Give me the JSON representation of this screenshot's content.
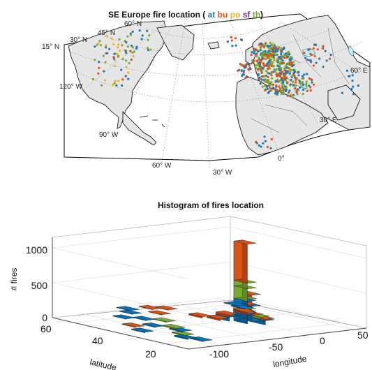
{
  "chart_data": [
    {
      "type": "scatter",
      "title_prefix": "SE Europe fire location ( ",
      "title_suffix": ")",
      "legend_series": [
        {
          "name": "at",
          "color": "#1f77b4"
        },
        {
          "name": "bu",
          "color": "#d95319"
        },
        {
          "name": "po",
          "color": "#edb120"
        },
        {
          "name": "sf",
          "color": "#7e2f8e"
        },
        {
          "name": "th",
          "color": "#77ac30"
        }
      ],
      "grid_labels": {
        "lat_15": "15° N",
        "lat_30": "30° N",
        "lat_45": "45° N",
        "lat_60": "60° N",
        "lon_120w": "120° W",
        "lon_90w": "90° W",
        "lon_60w": "60° W",
        "lon_30w": "30° W",
        "lon_0": "0°",
        "lon_30e": "30° E",
        "lon_60e": "60° E"
      },
      "land_color": "#e6e6e6",
      "grid": true
    },
    {
      "type": "bar3d",
      "title": "Histogram of fires location",
      "xlabel": "longitude",
      "ylabel": "latitude",
      "zlabel": "# fires",
      "x_ticks": [
        "-100",
        "-50",
        "0",
        "50"
      ],
      "y_ticks": [
        "20",
        "40",
        "60"
      ],
      "z_ticks": [
        "0",
        "500",
        "1000"
      ],
      "zlim": [
        0,
        1200
      ],
      "grid": true,
      "series_colors": {
        "blue": "#0072bd",
        "orange": "#d95319",
        "green": "#77ac30"
      },
      "bars": [
        {
          "lon": 0,
          "lat": 42,
          "stack": [
            {
              "c": "blue",
              "v": 300
            },
            {
              "c": "green",
              "v": 180
            },
            {
              "c": "green",
              "v": 80
            },
            {
              "c": "orange",
              "v": 560
            }
          ]
        },
        {
          "lon": 5,
          "lat": 42,
          "stack": [
            {
              "c": "blue",
              "v": 220
            },
            {
              "c": "orange",
              "v": 160
            }
          ]
        },
        {
          "lon": -5,
          "lat": 44,
          "stack": [
            {
              "c": "blue",
              "v": 120
            },
            {
              "c": "orange",
              "v": 150
            },
            {
              "c": "green",
              "v": 80
            }
          ]
        },
        {
          "lon": 10,
          "lat": 38,
          "stack": [
            {
              "c": "blue",
              "v": 100
            },
            {
              "c": "green",
              "v": 40
            }
          ]
        },
        {
          "lon": -10,
          "lat": 38,
          "stack": [
            {
              "c": "blue",
              "v": 60
            },
            {
              "c": "orange",
              "v": 30
            }
          ]
        },
        {
          "lon": 15,
          "lat": 36,
          "stack": [
            {
              "c": "blue",
              "v": 40
            },
            {
              "c": "orange",
              "v": 20
            }
          ]
        },
        {
          "lon": -15,
          "lat": 36,
          "stack": [
            {
              "c": "orange",
              "v": 25
            }
          ]
        },
        {
          "lon": 20,
          "lat": 40,
          "stack": [
            {
              "c": "green",
              "v": 30
            }
          ]
        },
        {
          "lon": 5,
          "lat": 48,
          "stack": [
            {
              "c": "blue",
              "v": 60
            },
            {
              "c": "orange",
              "v": 20
            }
          ]
        },
        {
          "lon": -20,
          "lat": 30,
          "stack": [
            {
              "c": "orange",
              "v": 20
            }
          ]
        },
        {
          "lon": 25,
          "lat": 35,
          "stack": [
            {
              "c": "orange",
              "v": 15
            }
          ]
        },
        {
          "lon": 30,
          "lat": 30,
          "stack": [
            {
              "c": "orange",
              "v": 10
            }
          ]
        },
        {
          "lon": -100,
          "lat": 55,
          "stack": [
            {
              "c": "blue",
              "v": 15
            }
          ]
        },
        {
          "lon": -95,
          "lat": 60,
          "stack": [
            {
              "c": "blue",
              "v": 10
            }
          ]
        },
        {
          "lon": -90,
          "lat": 50,
          "stack": [
            {
              "c": "green",
              "v": 10
            }
          ]
        },
        {
          "lon": -80,
          "lat": 45,
          "stack": [
            {
              "c": "blue",
              "v": 12
            }
          ]
        },
        {
          "lon": -75,
          "lat": 40,
          "stack": [
            {
              "c": "green",
              "v": 10
            }
          ]
        },
        {
          "lon": -110,
          "lat": 40,
          "stack": [
            {
              "c": "blue",
              "v": 10
            }
          ]
        },
        {
          "lon": -85,
          "lat": 35,
          "stack": [
            {
              "c": "blue",
              "v": 8
            }
          ]
        },
        {
          "lon": -100,
          "lat": 32,
          "stack": [
            {
              "c": "orange",
              "v": 8
            }
          ]
        },
        {
          "lon": -70,
          "lat": 25,
          "stack": [
            {
              "c": "blue",
              "v": 6
            }
          ]
        },
        {
          "lon": -60,
          "lat": 15,
          "stack": [
            {
              "c": "blue",
              "v": 5
            }
          ]
        },
        {
          "lon": -80,
          "lat": 20,
          "stack": [
            {
              "c": "blue",
              "v": 5
            }
          ]
        },
        {
          "lon": -60,
          "lat": 30,
          "stack": [
            {
              "c": "green",
              "v": 6
            }
          ]
        },
        {
          "lon": -20,
          "lat": 15,
          "stack": [
            {
              "c": "orange",
              "v": 6
            }
          ]
        },
        {
          "lon": -40,
          "lat": 20,
          "stack": [
            {
              "c": "orange",
              "v": 5
            }
          ]
        },
        {
          "lon": -50,
          "lat": 10,
          "stack": [
            {
              "c": "blue",
              "v": 5
            }
          ]
        },
        {
          "lon": 40,
          "lat": 25,
          "stack": [
            {
              "c": "blue",
              "v": 8
            }
          ]
        },
        {
          "lon": 45,
          "lat": 20,
          "stack": [
            {
              "c": "blue",
              "v": 6
            }
          ]
        },
        {
          "lon": -30,
          "lat": 12,
          "stack": [
            {
              "c": "orange",
              "v": 5
            }
          ]
        }
      ]
    }
  ]
}
